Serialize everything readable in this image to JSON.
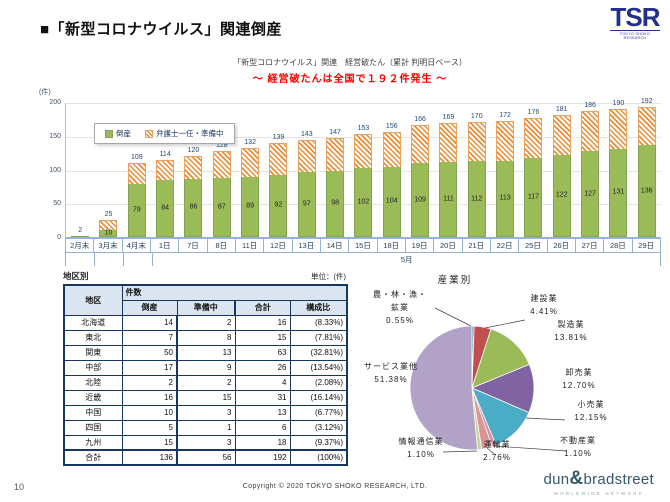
{
  "header": {
    "title": "■「新型コロナウイルス」関連倒産"
  },
  "logos": {
    "tsr": {
      "text": "TSR",
      "subtext": "TOKYO SHOKO RESEARCH"
    },
    "dnb": {
      "part1": "dun",
      "amp": "&",
      "part2": "bradstreet",
      "tagline": "WORLDWIDE NETWORK"
    }
  },
  "chart_data": [
    {
      "type": "bar",
      "title": "「新型コロナウイルス」関連　経営破たん（累計 判明日ベース）",
      "subtitle": "～ 経営破たんは全国で１９２件発生 ～",
      "unit_label": "(件)",
      "categories": [
        "2月末",
        "3月末",
        "4月末",
        "1日",
        "7日",
        "8日",
        "11日",
        "12日",
        "13日",
        "14日",
        "15日",
        "18日",
        "19日",
        "20日",
        "21日",
        "22日",
        "25日",
        "26日",
        "27日",
        "28日",
        "29日"
      ],
      "month_label": "5月",
      "series": [
        {
          "name": "倒産",
          "color": "#9BBB59",
          "values": [
            2,
            10,
            79,
            84,
            86,
            87,
            89,
            92,
            97,
            98,
            102,
            104,
            109,
            111,
            112,
            113,
            117,
            122,
            127,
            131,
            136
          ]
        },
        {
          "name": "弁護士一任・準備中",
          "color": "#ED8C32",
          "style": "hatch",
          "values": [
            0,
            15,
            30,
            30,
            34,
            41,
            43,
            47,
            46,
            49,
            51,
            52,
            57,
            58,
            58,
            59,
            59,
            59,
            59,
            59,
            56
          ]
        }
      ],
      "totals": [
        2,
        25,
        109,
        114,
        120,
        128,
        132,
        139,
        143,
        147,
        153,
        156,
        166,
        169,
        170,
        172,
        176,
        181,
        186,
        190,
        192
      ],
      "ylim": [
        0,
        200
      ],
      "yticks": [
        0,
        50,
        100,
        150,
        200
      ],
      "grid": true,
      "legend_position": "top-left-inside"
    },
    {
      "type": "pie",
      "title": "産業別",
      "slices": [
        {
          "label": "農・林・漁・鉱業",
          "pct": 0.55,
          "color": "#4F81BD"
        },
        {
          "label": "建設業",
          "pct": 4.41,
          "color": "#C0504D"
        },
        {
          "label": "製造業",
          "pct": 13.81,
          "color": "#9BBB59"
        },
        {
          "label": "卸売業",
          "pct": 12.7,
          "color": "#8064A2"
        },
        {
          "label": "小売業",
          "pct": 12.15,
          "color": "#4BACC6"
        },
        {
          "label": "不動産業",
          "pct": 1.1,
          "color": "#D98CA6"
        },
        {
          "label": "運輸業",
          "pct": 2.76,
          "color": "#D99694"
        },
        {
          "label": "情報通信業",
          "pct": 1.1,
          "color": "#C3D69B"
        },
        {
          "label": "サービス業他",
          "pct": 51.38,
          "color": "#B3A2C7"
        }
      ]
    }
  ],
  "region_table": {
    "section_title": "地区別",
    "unit": "単位：(件)",
    "corner": "地区",
    "col_group": "件数",
    "columns": [
      "倒産",
      "準備中",
      "合計",
      "構成比"
    ],
    "rows": [
      [
        "北海道",
        "14",
        "2",
        "16",
        "(8.33%)"
      ],
      [
        "東北",
        "7",
        "8",
        "15",
        "(7.81%)"
      ],
      [
        "関東",
        "50",
        "13",
        "63",
        "(32.81%)"
      ],
      [
        "中部",
        "17",
        "9",
        "26",
        "(13.54%)"
      ],
      [
        "北陸",
        "2",
        "2",
        "4",
        "(2.08%)"
      ],
      [
        "近畿",
        "16",
        "15",
        "31",
        "(16.14%)"
      ],
      [
        "中国",
        "10",
        "3",
        "13",
        "(6.77%)"
      ],
      [
        "四国",
        "5",
        "1",
        "6",
        "(3.12%)"
      ],
      [
        "九州",
        "15",
        "3",
        "18",
        "(9.37%)"
      ]
    ],
    "total_row": [
      "合計",
      "136",
      "56",
      "192",
      "(100%)"
    ]
  },
  "footer": {
    "page_number": "10",
    "copyright": "Copyright © 2020 TOKYO SHOKO RESEARCH, LTD."
  }
}
